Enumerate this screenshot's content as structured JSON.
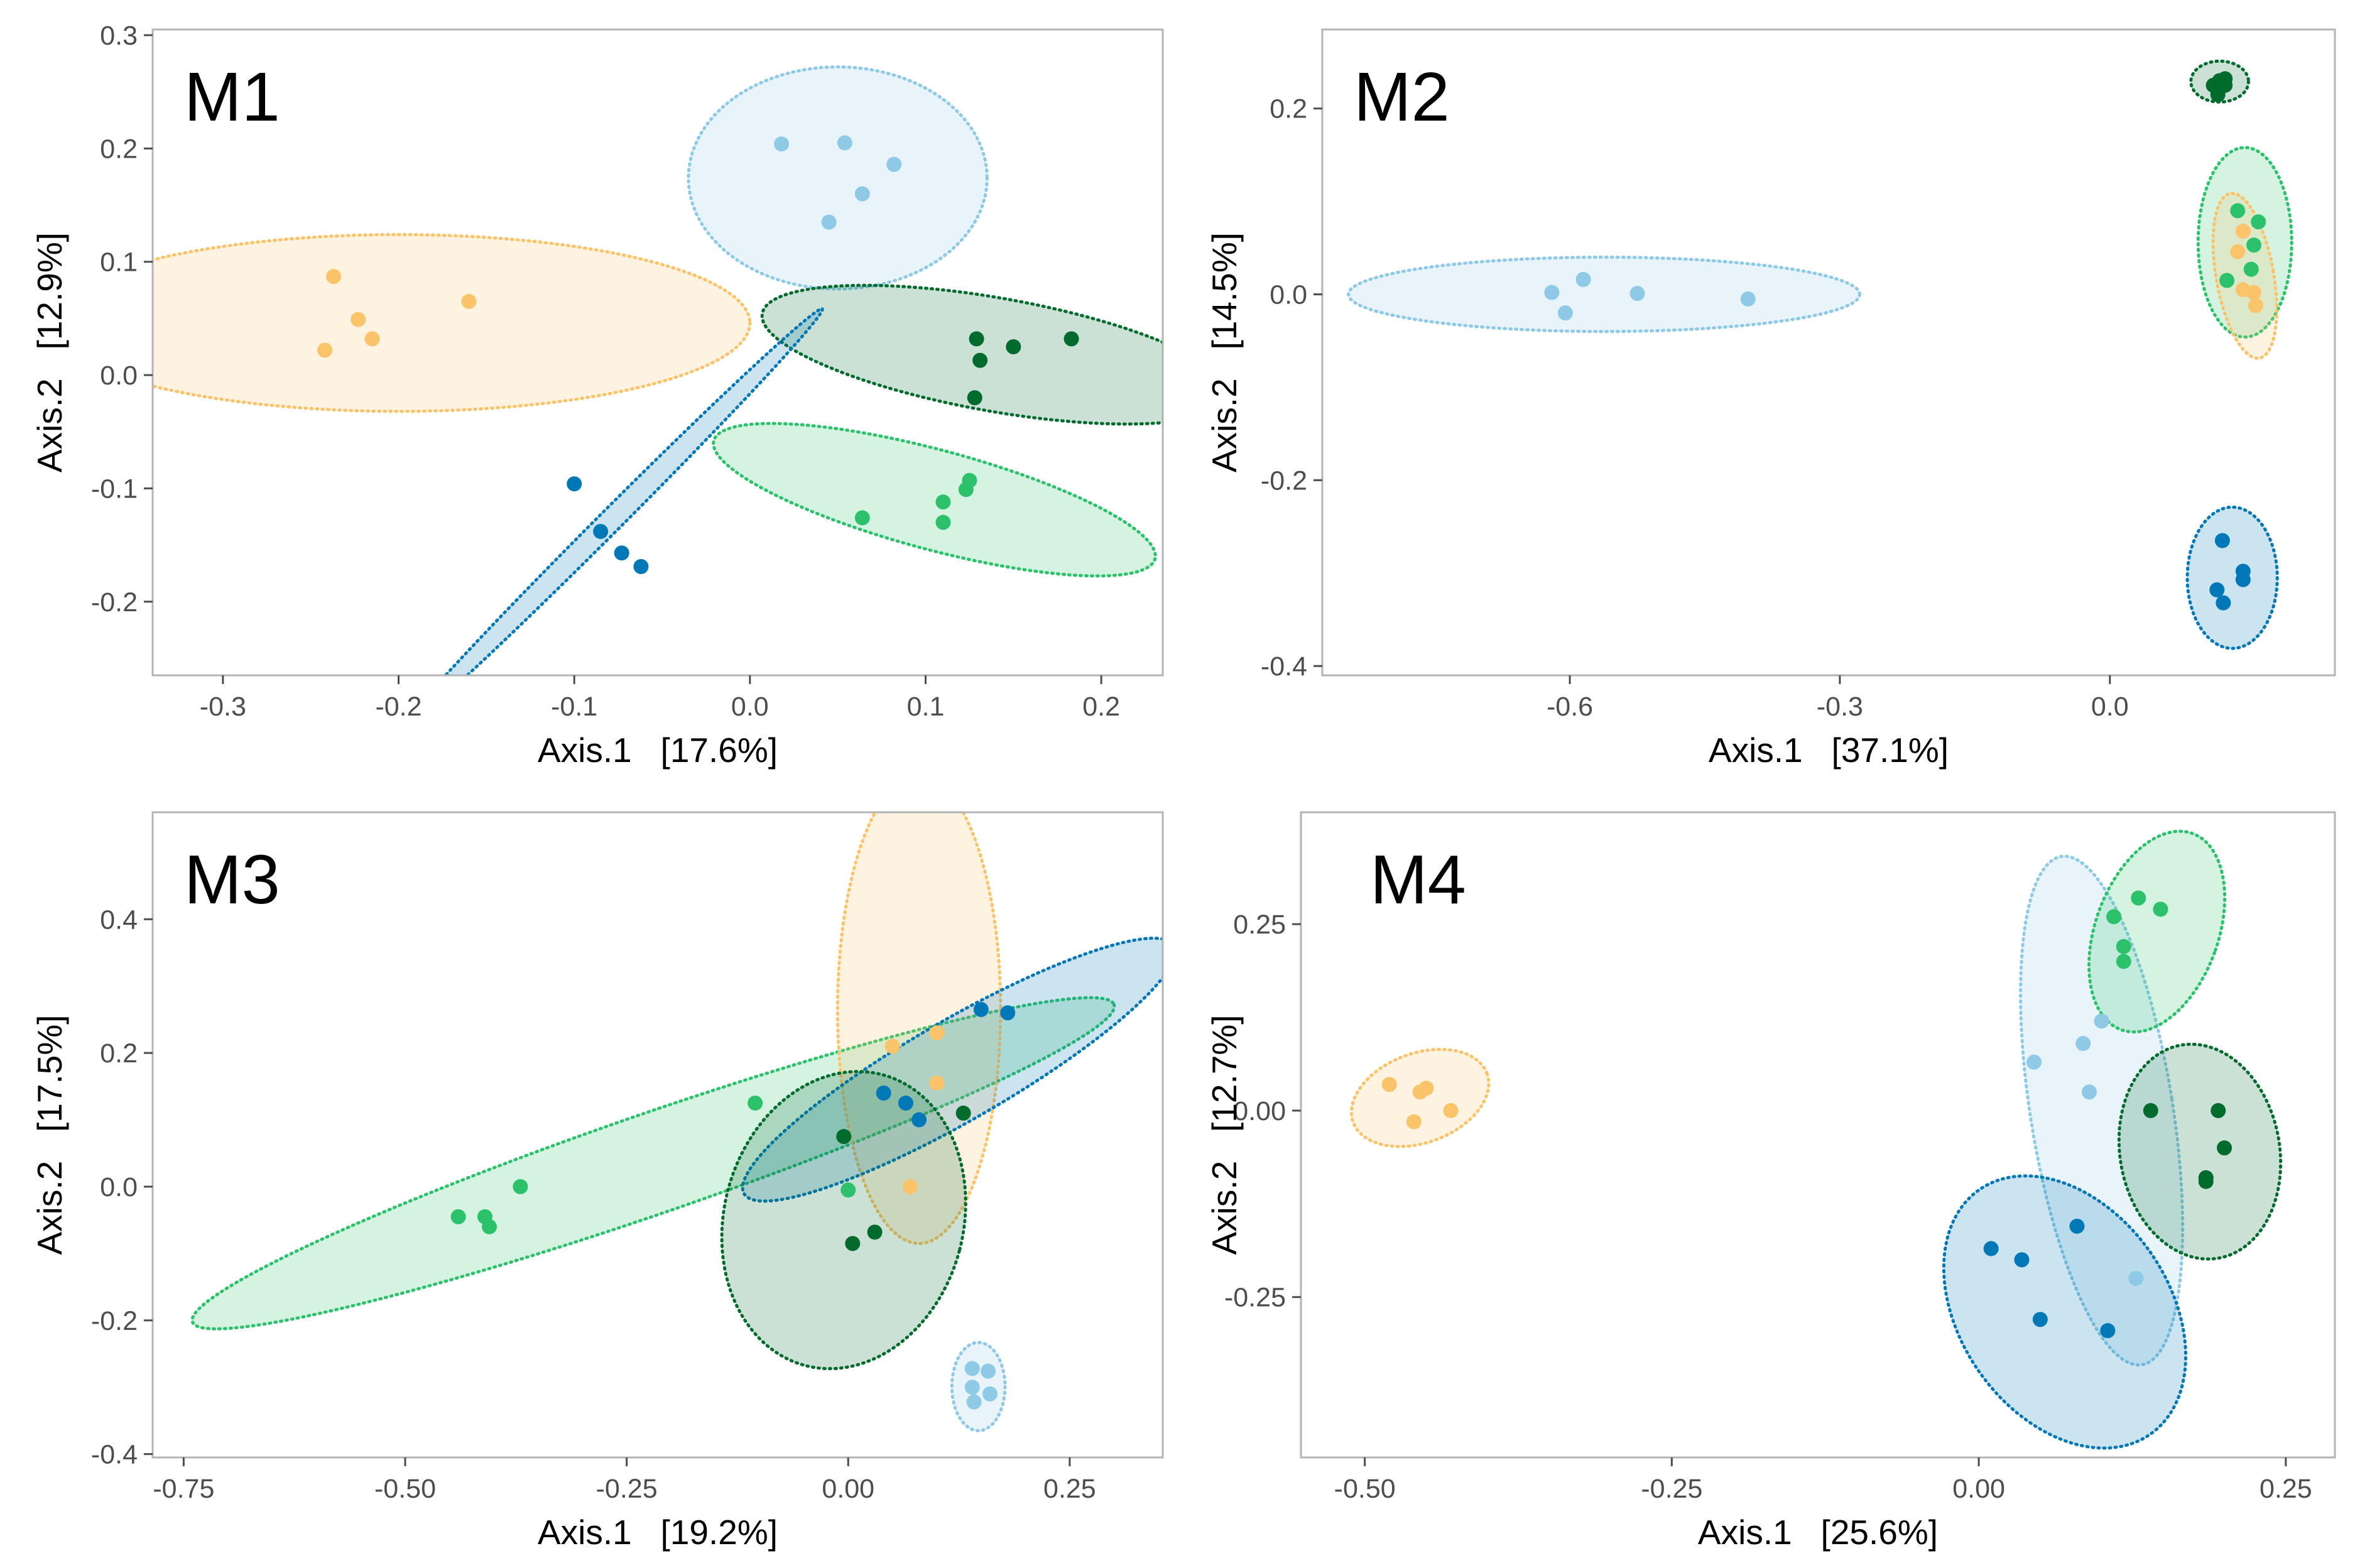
{
  "colors": {
    "light_blue": "#8ecae6",
    "dark_blue": "#0077b6",
    "orange": "#fcc46a",
    "medium_green": "#2bc26b",
    "dark_green": "#006b2d"
  },
  "chart_data": [
    {
      "type": "scatter",
      "panel": "M1",
      "xlabel": "Axis.1   [17.6%]",
      "ylabel": "Axis.2   [12.9%]",
      "xlim": [
        -0.34,
        0.235
      ],
      "ylim": [
        -0.265,
        0.305
      ],
      "xticks": [
        -0.3,
        -0.2,
        -0.1,
        0.0,
        0.1,
        0.2
      ],
      "xtick_labels": [
        "-0.3",
        "-0.2",
        "-0.1",
        "0.0",
        "0.1",
        "0.2"
      ],
      "yticks": [
        -0.2,
        -0.1,
        0.0,
        0.1,
        0.2,
        0.3
      ],
      "ytick_labels": [
        "-0.2",
        "-0.1",
        "0.0",
        "0.1",
        "0.2",
        "0.3"
      ],
      "groups": [
        {
          "color": "orange",
          "points": [
            [
              -0.237,
              0.087
            ],
            [
              -0.223,
              0.049
            ],
            [
              -0.215,
              0.032
            ],
            [
              -0.242,
              0.022
            ],
            [
              -0.16,
              0.065
            ]
          ],
          "ellipse": {
            "cx": -0.2,
            "cy": 0.046,
            "rx": 0.2,
            "ry": 0.078,
            "angle": 0
          }
        },
        {
          "color": "light_blue",
          "points": [
            [
              0.018,
              0.204
            ],
            [
              0.054,
              0.205
            ],
            [
              0.082,
              0.186
            ],
            [
              0.064,
              0.16
            ],
            [
              0.045,
              0.135
            ]
          ],
          "ellipse": {
            "cx": 0.05,
            "cy": 0.174,
            "rx": 0.085,
            "ry": 0.098,
            "angle": 0
          }
        },
        {
          "color": "dark_green",
          "points": [
            [
              0.129,
              0.032
            ],
            [
              0.15,
              0.025
            ],
            [
              0.183,
              0.032
            ],
            [
              0.131,
              0.013
            ],
            [
              0.128,
              -0.02
            ]
          ],
          "ellipse": {
            "cx": 0.14,
            "cy": 0.018,
            "rx": 0.135,
            "ry": 0.05,
            "angle": 10
          }
        },
        {
          "color": "medium_green",
          "points": [
            [
              0.064,
              -0.126
            ],
            [
              0.11,
              -0.112
            ],
            [
              0.123,
              -0.101
            ],
            [
              0.125,
              -0.093
            ],
            [
              0.11,
              -0.13
            ]
          ],
          "ellipse": {
            "cx": 0.105,
            "cy": -0.11,
            "rx": 0.13,
            "ry": 0.044,
            "angle": 15
          }
        },
        {
          "color": "dark_blue",
          "points": [
            [
              -0.1,
              -0.096
            ],
            [
              -0.085,
              -0.138
            ],
            [
              -0.073,
              -0.157
            ],
            [
              -0.062,
              -0.169
            ]
          ],
          "ellipse": {
            "cx": -0.079,
            "cy": -0.128,
            "rx": 0.17,
            "ry": 0.01,
            "angle": -45
          }
        }
      ]
    },
    {
      "type": "scatter",
      "panel": "M2",
      "xlabel": "Axis.1   [37.1%]",
      "ylabel": "Axis.2   [14.5%]",
      "xlim": [
        -0.875,
        0.25
      ],
      "ylim": [
        -0.41,
        0.285
      ],
      "xticks": [
        -0.6,
        -0.3,
        0.0
      ],
      "xtick_labels": [
        "-0.6",
        "-0.3",
        "0.0"
      ],
      "yticks": [
        -0.4,
        -0.2,
        0.0,
        0.2
      ],
      "ytick_labels": [
        "-0.4",
        "-0.2",
        "0.0",
        "0.2"
      ],
      "groups": [
        {
          "color": "light_blue",
          "points": [
            [
              -0.62,
              0.002
            ],
            [
              -0.605,
              -0.02
            ],
            [
              -0.585,
              0.016
            ],
            [
              -0.525,
              0.001
            ],
            [
              -0.402,
              -0.005
            ]
          ],
          "ellipse": {
            "cx": -0.562,
            "cy": 0.0,
            "rx": 0.284,
            "ry": 0.04,
            "angle": 0
          }
        },
        {
          "color": "dark_green",
          "points": [
            [
              0.115,
              0.225
            ],
            [
              0.122,
              0.23
            ],
            [
              0.128,
              0.225
            ],
            [
              0.12,
              0.215
            ],
            [
              0.128,
              0.232
            ]
          ],
          "ellipse": {
            "cx": 0.122,
            "cy": 0.229,
            "rx": 0.032,
            "ry": 0.022,
            "angle": 0
          }
        },
        {
          "color": "medium_green",
          "points": [
            [
              0.142,
              0.09
            ],
            [
              0.165,
              0.078
            ],
            [
              0.16,
              0.053
            ],
            [
              0.157,
              0.027
            ],
            [
              0.13,
              0.015
            ]
          ],
          "ellipse": {
            "cx": 0.15,
            "cy": 0.056,
            "rx": 0.052,
            "ry": 0.102,
            "angle": 0
          }
        },
        {
          "color": "orange",
          "points": [
            [
              0.148,
              0.068
            ],
            [
              0.142,
              0.046
            ],
            [
              0.148,
              0.005
            ],
            [
              0.162,
              -0.012
            ],
            [
              0.16,
              0.002
            ]
          ],
          "ellipse": {
            "cx": 0.15,
            "cy": 0.02,
            "rx": 0.032,
            "ry": 0.09,
            "angle": -10
          }
        },
        {
          "color": "dark_blue",
          "points": [
            [
              0.125,
              -0.265
            ],
            [
              0.148,
              -0.298
            ],
            [
              0.148,
              -0.307
            ],
            [
              0.119,
              -0.318
            ],
            [
              0.126,
              -0.332
            ]
          ],
          "ellipse": {
            "cx": 0.136,
            "cy": -0.305,
            "rx": 0.05,
            "ry": 0.076,
            "angle": 0
          }
        }
      ]
    },
    {
      "type": "scatter",
      "panel": "M3",
      "xlabel": "Axis.1   [19.2%]",
      "ylabel": "Axis.2   [17.5%]",
      "xlim": [
        -0.785,
        0.355
      ],
      "ylim": [
        -0.405,
        0.56
      ],
      "xticks": [
        -0.75,
        -0.5,
        -0.25,
        0.0,
        0.25
      ],
      "xtick_labels": [
        "-0.75",
        "-0.50",
        "-0.25",
        "0.00",
        "0.25"
      ],
      "yticks": [
        -0.4,
        -0.2,
        0.0,
        0.2,
        0.4
      ],
      "ytick_labels": [
        "-0.4",
        "-0.2",
        "0.0",
        "0.2",
        "0.4"
      ],
      "groups": [
        {
          "color": "medium_green",
          "points": [
            [
              -0.44,
              -0.045
            ],
            [
              -0.41,
              -0.045
            ],
            [
              -0.405,
              -0.06
            ],
            [
              -0.37,
              0.0
            ],
            [
              -0.105,
              0.125
            ],
            [
              0.0,
              -0.005
            ]
          ],
          "ellipse": {
            "cx": -0.22,
            "cy": 0.035,
            "rx": 0.55,
            "ry": 0.075,
            "angle": -19
          }
        },
        {
          "color": "orange",
          "points": [
            [
              0.05,
              0.21
            ],
            [
              0.1,
              0.23
            ],
            [
              0.1,
              0.155
            ],
            [
              0.07,
              0.0
            ]
          ],
          "ellipse": {
            "cx": 0.08,
            "cy": 0.265,
            "rx": 0.092,
            "ry": 0.35,
            "angle": 0
          }
        },
        {
          "color": "dark_blue",
          "points": [
            [
              0.15,
              0.265
            ],
            [
              0.18,
              0.26
            ],
            [
              0.04,
              0.14
            ],
            [
              0.065,
              0.125
            ],
            [
              0.08,
              0.1
            ]
          ],
          "ellipse": {
            "cx": 0.125,
            "cy": 0.175,
            "rx": 0.28,
            "ry": 0.075,
            "angle": -30
          }
        },
        {
          "color": "dark_green",
          "points": [
            [
              0.13,
              0.11
            ],
            [
              -0.005,
              0.075
            ],
            [
              0.005,
              -0.085
            ],
            [
              0.03,
              -0.068
            ]
          ],
          "ellipse": {
            "cx": -0.005,
            "cy": -0.05,
            "rx": 0.135,
            "ry": 0.225,
            "angle": 15
          }
        },
        {
          "color": "light_blue",
          "points": [
            [
              0.14,
              -0.272
            ],
            [
              0.158,
              -0.276
            ],
            [
              0.14,
              -0.3
            ],
            [
              0.16,
              -0.31
            ],
            [
              0.142,
              -0.322
            ]
          ],
          "ellipse": {
            "cx": 0.147,
            "cy": -0.299,
            "rx": 0.03,
            "ry": 0.066,
            "angle": 0
          }
        }
      ]
    },
    {
      "type": "scatter",
      "panel": "M4",
      "xlabel": "Axis.1   [25.6%]",
      "ylabel": "Axis.2   [12.7%]",
      "xlim": [
        -0.552,
        0.29
      ],
      "ylim": [
        -0.465,
        0.4
      ],
      "xticks": [
        -0.5,
        -0.25,
        0.0,
        0.25
      ],
      "xtick_labels": [
        "-0.50",
        "-0.25",
        "0.00",
        "0.25"
      ],
      "yticks": [
        -0.25,
        0.0,
        0.25
      ],
      "yticks_labels_note": "",
      "ytick_labels": [
        "-0.25",
        "0.00",
        "0.25"
      ],
      "groups": [
        {
          "color": "orange",
          "points": [
            [
              -0.48,
              0.035
            ],
            [
              -0.455,
              0.025
            ],
            [
              -0.45,
              0.03
            ],
            [
              -0.43,
              0.0
            ],
            [
              -0.46,
              -0.015
            ]
          ],
          "ellipse": {
            "cx": -0.455,
            "cy": 0.017,
            "rx": 0.058,
            "ry": 0.06,
            "angle": -20
          }
        },
        {
          "color": "light_blue",
          "points": [
            [
              0.1,
              0.12
            ],
            [
              0.085,
              0.09
            ],
            [
              0.045,
              0.065
            ],
            [
              0.09,
              0.025
            ],
            [
              0.128,
              -0.225
            ]
          ],
          "ellipse": {
            "cx": 0.1,
            "cy": 0.0,
            "rx": 0.058,
            "ry": 0.345,
            "angle": -9
          }
        },
        {
          "color": "medium_green",
          "points": [
            [
              0.11,
              0.26
            ],
            [
              0.13,
              0.285
            ],
            [
              0.148,
              0.27
            ],
            [
              0.118,
              0.22
            ],
            [
              0.118,
              0.2
            ]
          ],
          "ellipse": {
            "cx": 0.145,
            "cy": 0.24,
            "rx": 0.05,
            "ry": 0.14,
            "angle": 20
          }
        },
        {
          "color": "dark_green",
          "points": [
            [
              0.14,
              0.0
            ],
            [
              0.195,
              0.0
            ],
            [
              0.2,
              -0.05
            ],
            [
              0.185,
              -0.09
            ],
            [
              0.185,
              -0.095
            ]
          ],
          "ellipse": {
            "cx": 0.18,
            "cy": -0.055,
            "rx": 0.065,
            "ry": 0.145,
            "angle": -10
          }
        },
        {
          "color": "dark_blue",
          "points": [
            [
              0.01,
              -0.185
            ],
            [
              0.035,
              -0.2
            ],
            [
              0.08,
              -0.155
            ],
            [
              0.05,
              -0.28
            ],
            [
              0.105,
              -0.295
            ]
          ],
          "ellipse": {
            "cx": 0.07,
            "cy": -0.27,
            "rx": 0.085,
            "ry": 0.2,
            "angle": -35
          }
        }
      ]
    }
  ]
}
